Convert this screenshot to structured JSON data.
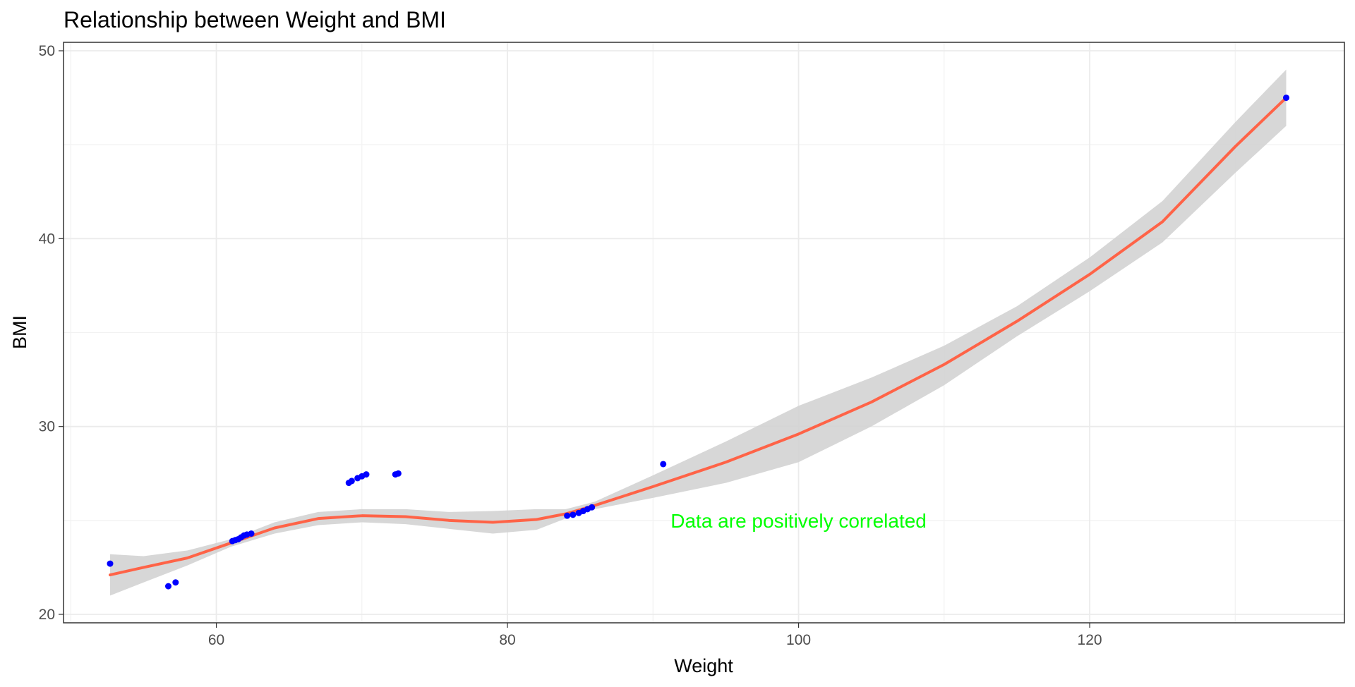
{
  "chart_data": {
    "type": "scatter",
    "title": "Relationship between Weight and BMI",
    "xlabel": "Weight",
    "ylabel": "BMI",
    "xlim": [
      49.5,
      137.5
    ],
    "ylim": [
      19.55,
      50.45
    ],
    "x_ticks": [
      60,
      80,
      100,
      120
    ],
    "y_ticks": [
      20,
      30,
      40,
      50
    ],
    "grid": true,
    "legend": "none",
    "series": [
      {
        "type": "scatter",
        "color": "#0000ff",
        "points": [
          [
            52.7,
            22.7
          ],
          [
            56.7,
            21.5
          ],
          [
            57.2,
            21.7
          ],
          [
            61.1,
            23.9
          ],
          [
            61.3,
            23.95
          ],
          [
            61.5,
            24.0
          ],
          [
            61.7,
            24.1
          ],
          [
            61.9,
            24.2
          ],
          [
            62.1,
            24.25
          ],
          [
            62.4,
            24.3
          ],
          [
            69.1,
            27.0
          ],
          [
            69.3,
            27.1
          ],
          [
            69.7,
            27.25
          ],
          [
            70.0,
            27.35
          ],
          [
            70.3,
            27.45
          ],
          [
            72.3,
            27.45
          ],
          [
            72.5,
            27.5
          ],
          [
            84.1,
            25.25
          ],
          [
            84.5,
            25.3
          ],
          [
            84.9,
            25.4
          ],
          [
            85.2,
            25.5
          ],
          [
            85.5,
            25.6
          ],
          [
            85.8,
            25.7
          ],
          [
            90.7,
            28.0
          ],
          [
            133.5,
            47.5
          ]
        ]
      },
      {
        "type": "smooth",
        "color": "#ff6347",
        "band_color": "#d3d3d3",
        "fit": [
          [
            52.7,
            22.1
          ],
          [
            55,
            22.5
          ],
          [
            58,
            23.0
          ],
          [
            61,
            23.8
          ],
          [
            64,
            24.6
          ],
          [
            67,
            25.1
          ],
          [
            70,
            25.25
          ],
          [
            73,
            25.2
          ],
          [
            76,
            25.0
          ],
          [
            79,
            24.9
          ],
          [
            82,
            25.05
          ],
          [
            84,
            25.35
          ],
          [
            86,
            25.8
          ],
          [
            90,
            26.8
          ],
          [
            95,
            28.1
          ],
          [
            100,
            29.6
          ],
          [
            105,
            31.3
          ],
          [
            110,
            33.3
          ],
          [
            115,
            35.6
          ],
          [
            120,
            38.1
          ],
          [
            125,
            40.9
          ],
          [
            130,
            44.9
          ],
          [
            133.5,
            47.5
          ]
        ],
        "upper": [
          [
            52.7,
            23.2
          ],
          [
            55,
            23.1
          ],
          [
            58,
            23.4
          ],
          [
            61,
            24.0
          ],
          [
            64,
            24.9
          ],
          [
            67,
            25.45
          ],
          [
            70,
            25.6
          ],
          [
            73,
            25.6
          ],
          [
            76,
            25.45
          ],
          [
            79,
            25.5
          ],
          [
            82,
            25.6
          ],
          [
            84,
            25.6
          ],
          [
            86,
            26.0
          ],
          [
            90,
            27.4
          ],
          [
            95,
            29.2
          ],
          [
            100,
            31.1
          ],
          [
            105,
            32.6
          ],
          [
            110,
            34.3
          ],
          [
            115,
            36.4
          ],
          [
            120,
            39.0
          ],
          [
            125,
            42.0
          ],
          [
            130,
            46.2
          ],
          [
            133.5,
            49.0
          ]
        ],
        "lower": [
          [
            52.7,
            21.0
          ],
          [
            55,
            21.7
          ],
          [
            58,
            22.6
          ],
          [
            61,
            23.6
          ],
          [
            64,
            24.3
          ],
          [
            67,
            24.75
          ],
          [
            70,
            24.9
          ],
          [
            73,
            24.8
          ],
          [
            76,
            24.55
          ],
          [
            79,
            24.3
          ],
          [
            82,
            24.5
          ],
          [
            84,
            25.1
          ],
          [
            86,
            25.6
          ],
          [
            90,
            26.2
          ],
          [
            95,
            27.0
          ],
          [
            100,
            28.1
          ],
          [
            105,
            30.0
          ],
          [
            110,
            32.2
          ],
          [
            115,
            34.8
          ],
          [
            120,
            37.2
          ],
          [
            125,
            39.8
          ],
          [
            130,
            43.5
          ],
          [
            133.5,
            46.0
          ]
        ]
      }
    ],
    "annotations": [
      {
        "text": "Data are positively correlated",
        "x": 100,
        "y": 25,
        "color": "#00ff00"
      }
    ]
  }
}
